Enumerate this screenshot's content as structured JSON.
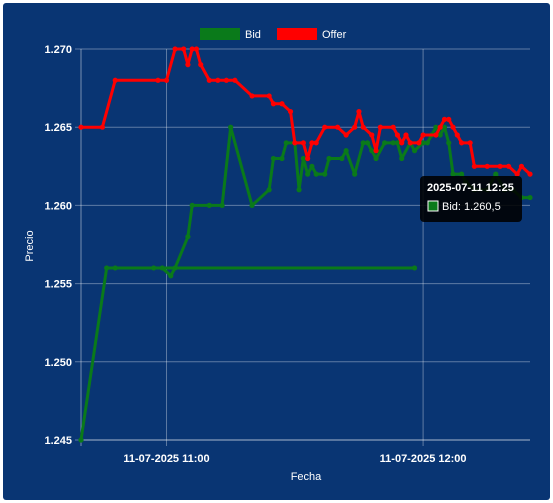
{
  "chart_data": {
    "type": "line",
    "title": "",
    "xlabel": "Fecha",
    "ylabel": "Precio",
    "ylim": [
      1.245,
      1.27
    ],
    "y_ticks": [
      "1.245",
      "1.250",
      "1.255",
      "1.260",
      "1.265",
      "1.270"
    ],
    "x_ticks": [
      "11-07-2025 11:00",
      "11-07-2025 12:00"
    ],
    "x_time_range": [
      "10:40",
      "12:25"
    ],
    "legend_position": "top",
    "grid": true,
    "series": [
      {
        "name": "Bid",
        "color": "#0a7a1a",
        "points": [
          [
            "10:40",
            1.245
          ],
          [
            "10:46",
            1.256
          ],
          [
            "10:48",
            1.256
          ],
          [
            "11:58",
            1.256
          ],
          [
            "10:57",
            1.256
          ],
          [
            "10:59",
            1.256
          ],
          [
            "11:01",
            1.2555
          ],
          [
            "11:02",
            1.256
          ],
          [
            "11:05",
            1.258
          ],
          [
            "11:06",
            1.26
          ],
          [
            "11:10",
            1.26
          ],
          [
            "11:13",
            1.26
          ],
          [
            "11:15",
            1.265
          ],
          [
            "11:20",
            1.26
          ],
          [
            "11:24",
            1.261
          ],
          [
            "11:25",
            1.263
          ],
          [
            "11:27",
            1.263
          ],
          [
            "11:28",
            1.264
          ],
          [
            "11:30",
            1.264
          ],
          [
            "11:31",
            1.261
          ],
          [
            "11:32",
            1.263
          ],
          [
            "11:33",
            1.262
          ],
          [
            "11:34",
            1.2625
          ],
          [
            "11:35",
            1.262
          ],
          [
            "11:37",
            1.262
          ],
          [
            "11:38",
            1.263
          ],
          [
            "11:41",
            1.263
          ],
          [
            "11:42",
            1.2635
          ],
          [
            "11:44",
            1.262
          ],
          [
            "11:46",
            1.264
          ],
          [
            "11:47",
            1.264
          ],
          [
            "11:48",
            1.2635
          ],
          [
            "11:49",
            1.263
          ],
          [
            "11:51",
            1.264
          ],
          [
            "11:53",
            1.264
          ],
          [
            "11:54",
            1.264
          ],
          [
            "11:55",
            1.263
          ],
          [
            "11:57",
            1.264
          ],
          [
            "11:58",
            1.2635
          ],
          [
            "12:00",
            1.264
          ],
          [
            "12:01",
            1.264
          ],
          [
            "12:02",
            1.2645
          ],
          [
            "12:03",
            1.265
          ],
          [
            "12:04",
            1.2645
          ],
          [
            "12:05",
            1.265
          ],
          [
            "12:06",
            1.264
          ],
          [
            "12:07",
            1.262
          ],
          [
            "12:09",
            1.262
          ],
          [
            "12:10",
            1.2615
          ],
          [
            "12:12",
            1.261
          ],
          [
            "12:15",
            1.261
          ],
          [
            "12:17",
            1.262
          ],
          [
            "12:19",
            1.261
          ],
          [
            "12:21",
            1.261
          ],
          [
            "12:23",
            1.2605
          ],
          [
            "12:25",
            1.2605
          ]
        ]
      },
      {
        "name": "Offer",
        "color": "#ff0000",
        "points": [
          [
            "10:40",
            1.265
          ],
          [
            "10:45",
            1.265
          ],
          [
            "10:48",
            1.268
          ],
          [
            "10:58",
            1.268
          ],
          [
            "11:00",
            1.268
          ],
          [
            "11:02",
            1.27
          ],
          [
            "11:04",
            1.27
          ],
          [
            "11:05",
            1.269
          ],
          [
            "11:06",
            1.27
          ],
          [
            "11:07",
            1.27
          ],
          [
            "11:08",
            1.269
          ],
          [
            "11:10",
            1.268
          ],
          [
            "11:12",
            1.268
          ],
          [
            "11:14",
            1.268
          ],
          [
            "11:16",
            1.268
          ],
          [
            "11:20",
            1.267
          ],
          [
            "11:24",
            1.267
          ],
          [
            "11:25",
            1.2665
          ],
          [
            "11:27",
            1.2665
          ],
          [
            "11:29",
            1.266
          ],
          [
            "11:30",
            1.264
          ],
          [
            "11:32",
            1.264
          ],
          [
            "11:33",
            1.263
          ],
          [
            "11:34",
            1.264
          ],
          [
            "11:35",
            1.264
          ],
          [
            "11:37",
            1.265
          ],
          [
            "11:40",
            1.265
          ],
          [
            "11:42",
            1.2645
          ],
          [
            "11:44",
            1.265
          ],
          [
            "11:45",
            1.266
          ],
          [
            "11:46",
            1.265
          ],
          [
            "11:48",
            1.2645
          ],
          [
            "11:49",
            1.2635
          ],
          [
            "11:50",
            1.265
          ],
          [
            "11:53",
            1.265
          ],
          [
            "11:54",
            1.2645
          ],
          [
            "11:55",
            1.264
          ],
          [
            "11:56",
            1.2645
          ],
          [
            "11:57",
            1.264
          ],
          [
            "11:59",
            1.264
          ],
          [
            "12:00",
            1.2645
          ],
          [
            "12:03",
            1.2645
          ],
          [
            "12:04",
            1.265
          ],
          [
            "12:05",
            1.2655
          ],
          [
            "12:06",
            1.2655
          ],
          [
            "12:07",
            1.265
          ],
          [
            "12:08",
            1.2645
          ],
          [
            "12:09",
            1.264
          ],
          [
            "12:11",
            1.264
          ],
          [
            "12:12",
            1.2625
          ],
          [
            "12:15",
            1.2625
          ],
          [
            "12:18",
            1.2625
          ],
          [
            "12:20",
            1.2625
          ],
          [
            "12:22",
            1.262
          ],
          [
            "12:23",
            1.2625
          ],
          [
            "12:25",
            1.262
          ]
        ]
      }
    ],
    "tooltip": {
      "title": "2025-07-11 12:25",
      "label": "Bid: 1.260,5",
      "series": "Bid"
    }
  }
}
